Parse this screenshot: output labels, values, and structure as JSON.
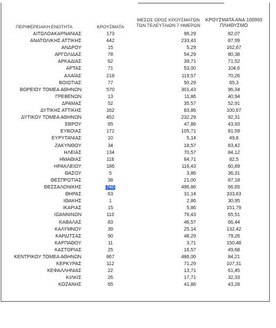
{
  "headers": {
    "region": "ΠΕΡΙΦΕΡΕΙΑΚΗ ΕΝΟΤΗΤΑ",
    "cases": "ΚΡΟΥΣΜΑΤΑ",
    "avg7_line1": "ΜΕΣΟΣ ΟΡΟΣ ΚΡΟΥΣΜΑΤΩΝ",
    "avg7_line2": "ΤΩΝ ΤΕΛΕΥΤΑΙΩΝ 7 ΗΜΕΡΩΝ",
    "per100k_line1": "ΚΡΟΥΣΜΑΤΑ ΑΝΑ 100000",
    "per100k_line2": "ΠΛΗΘΥΣΜΟ"
  },
  "rows": [
    {
      "region": "ΑΙΤΩΛΟΑΚΑΡΝΑΝΙΑΣ",
      "cases": "173",
      "avg7": "96,29",
      "per100k": "82,07"
    },
    {
      "region": "ΑΝΑΤΟΛΙΚΗΣ ΑΤΤΙΚΗΣ",
      "cases": "442",
      "avg7": "233,43",
      "per100k": "87,99"
    },
    {
      "region": "ΑΝΔΡΟΥ",
      "cases": "15",
      "avg7": "5,29",
      "per100k": "162,67"
    },
    {
      "region": "ΑΡΓΟΛΙΔΑΣ",
      "cases": "78",
      "avg7": "54,29",
      "per100k": "80,38"
    },
    {
      "region": "ΑΡΚΑΔΙΑΣ",
      "cases": "62",
      "avg7": "39,71",
      "per100k": "71,52"
    },
    {
      "region": "ΑΡΤΑΣ",
      "cases": "71",
      "avg7": "53,00",
      "per100k": "104,6"
    },
    {
      "region": "ΑΧΑΪΑΣ",
      "cases": "218",
      "avg7": "119,57",
      "per100k": "70,26"
    },
    {
      "region": "ΒΟΙΩΤΙΑΣ",
      "cases": "77",
      "avg7": "50,29",
      "per100k": "65,3"
    },
    {
      "region": "ΒΟΡΕΙΟΥ ΤΟΜΕΑ ΑΘΗΝΩΝ",
      "cases": "570",
      "avg7": "301,43",
      "per100k": "96,34"
    },
    {
      "region": "ΓΡΕΒΕΝΩΝ",
      "cases": "13",
      "avg7": "11,86",
      "per100k": "40,94"
    },
    {
      "region": "ΔΡΑΜΑΣ",
      "cases": "52",
      "avg7": "35,57",
      "per100k": "52,91"
    },
    {
      "region": "ΔΥΤΙΚΗΣ ΑΤΤΙΚΗΣ",
      "cases": "162",
      "avg7": "83,86",
      "per100k": "100,67"
    },
    {
      "region": "ΔΥΤΙΚΟΥ ΤΟΜΕΑ ΑΘΗΝΩΝ",
      "cases": "452",
      "avg7": "232,29",
      "per100k": "92,31"
    },
    {
      "region": "ΕΒΡΟΥ",
      "cases": "65",
      "avg7": "47,86",
      "per100k": "43,93"
    },
    {
      "region": "ΕΥΒΟΙΑΣ",
      "cases": "172",
      "avg7": "105,71",
      "per100k": "81,59"
    },
    {
      "region": "ΕΥΡΥΤΑΝΙΑΣ",
      "cases": "10",
      "avg7": "5,14",
      "per100k": "49,8"
    },
    {
      "region": "ΖΑΚΥΝΘΟΥ",
      "cases": "34",
      "avg7": "18,57",
      "per100k": "83,42"
    },
    {
      "region": "ΗΛΕΙΑΣ",
      "cases": "134",
      "avg7": "70,57",
      "per100k": "84,12"
    },
    {
      "region": "ΗΜΑΘΙΑΣ",
      "cases": "116",
      "avg7": "64,71",
      "per100k": "82,5"
    },
    {
      "region": "ΗΡΑΚΛΕΙΟΥ",
      "cases": "186",
      "avg7": "116,43",
      "per100k": "60,89"
    },
    {
      "region": "ΘΑΣΟΥ",
      "cases": "5",
      "avg7": "3,86",
      "per100k": "36,31"
    },
    {
      "region": "ΘΕΣΠΡΩΤΙΑΣ",
      "cases": "38",
      "avg7": "21,00",
      "per100k": "87,18"
    },
    {
      "region": "ΘΕΣΣΑΛΟΝΙΚΗΣ",
      "cases": "740",
      "avg7": "496,86",
      "per100k": "66,65"
    },
    {
      "region": "ΘΗΡΑΣ",
      "cases": "63",
      "avg7": "31,14",
      "per100k": "333,63"
    },
    {
      "region": "ΙΘΑΚΗΣ",
      "cases": "1",
      "avg7": "2,86",
      "per100k": "30,95"
    },
    {
      "region": "ΙΚΑΡΙΑΣ",
      "cases": "15",
      "avg7": "5,86",
      "per100k": "151,79"
    },
    {
      "region": "ΙΩΑΝΝΙΝΩΝ",
      "cases": "110",
      "avg7": "76,43",
      "per100k": "65,51"
    },
    {
      "region": "ΚΑΒΑΛΑΣ",
      "cases": "83",
      "avg7": "46,57",
      "per100k": "66,44"
    },
    {
      "region": "ΚΑΛΥΜΝΟΥ",
      "cases": "39",
      "avg7": "25,14",
      "per100k": "132,42"
    },
    {
      "region": "ΚΑΡΔΙΤΣΑΣ",
      "cases": "90",
      "avg7": "48,29",
      "per100k": "79,26"
    },
    {
      "region": "ΚΑΡΠΑΘΟΥ",
      "cases": "11",
      "avg7": "3,71",
      "per100k": "150,48"
    },
    {
      "region": "ΚΑΣΤΟΡΙΑΣ",
      "cases": "25",
      "avg7": "16,57",
      "per100k": "49,68"
    },
    {
      "region": "ΚΕΝΤΡΙΚΟΥ ΤΟΜΕΑ ΑΘΗΝΩΝ",
      "cases": "867",
      "avg7": "486,00",
      "per100k": "84,21"
    },
    {
      "region": "ΚΕΡΚΥΡΑΣ",
      "cases": "112",
      "avg7": "71,29",
      "per100k": "107,31"
    },
    {
      "region": "ΚΕΦΑΛΛΗΝΙΑΣ",
      "cases": "22",
      "avg7": "13,71",
      "per100k": "61,45"
    },
    {
      "region": "ΚΙΛΚΙΣ",
      "cases": "26",
      "avg7": "17,71",
      "per100k": "32,33"
    },
    {
      "region": "ΚΟΖΑΝΗΣ",
      "cases": "65",
      "avg7": "41,86",
      "per100k": "43,28"
    }
  ]
}
